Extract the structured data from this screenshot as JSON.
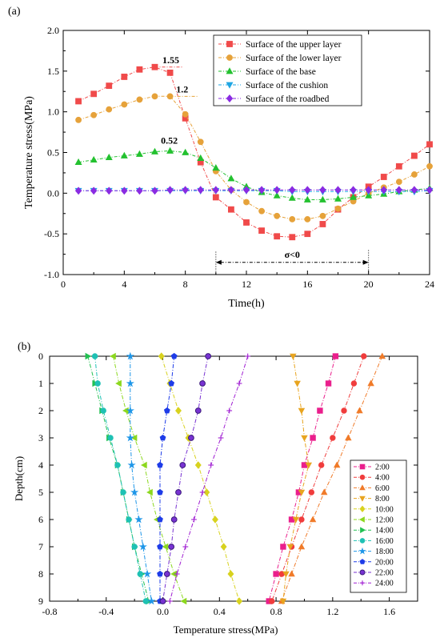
{
  "colors": {
    "axis": "#000000",
    "upper": "#f04a4a",
    "lower": "#e6a23a",
    "base": "#23c12f",
    "cushion": "#1fa6e3",
    "roadbed": "#8a2be2"
  },
  "chart_data": [
    {
      "panel_label": "(a)",
      "type": "line",
      "xlabel": "Time(h)",
      "ylabel": "Temperature stress(MPa)",
      "xlim": [
        0,
        24
      ],
      "ylim": [
        -1.0,
        2.0
      ],
      "xticks": [
        "0",
        "4",
        "8",
        "12",
        "16",
        "20",
        "24"
      ],
      "yticks": [
        "-1.0",
        "-0.5",
        "0.0",
        "0.5",
        "1.0",
        "1.5",
        "2.0"
      ],
      "grid": false,
      "legend_position": "top-right",
      "x": [
        1,
        2,
        3,
        4,
        5,
        6,
        7,
        8,
        9,
        10,
        11,
        12,
        13,
        14,
        15,
        16,
        17,
        18,
        19,
        20,
        21,
        22,
        23,
        24
      ],
      "series": [
        {
          "name": "Surface of the upper layer",
          "color": "#f04a4a",
          "marker": "square",
          "values": [
            1.13,
            1.22,
            1.32,
            1.43,
            1.52,
            1.55,
            1.48,
            0.92,
            0.38,
            -0.05,
            -0.2,
            -0.36,
            -0.46,
            -0.53,
            -0.54,
            -0.5,
            -0.38,
            -0.2,
            -0.05,
            0.08,
            0.2,
            0.33,
            0.46,
            0.6
          ]
        },
        {
          "name": "Surface of the lower layer",
          "color": "#e6a23a",
          "marker": "circle",
          "values": [
            0.9,
            0.96,
            1.03,
            1.09,
            1.15,
            1.19,
            1.19,
            0.97,
            0.63,
            0.27,
            0.04,
            -0.11,
            -0.22,
            -0.28,
            -0.32,
            -0.32,
            -0.28,
            -0.19,
            -0.1,
            0.0,
            0.07,
            0.14,
            0.23,
            0.33
          ]
        },
        {
          "name": "Surface of the base",
          "color": "#23c12f",
          "marker": "triangle-up",
          "values": [
            0.38,
            0.41,
            0.44,
            0.46,
            0.48,
            0.51,
            0.52,
            0.5,
            0.43,
            0.31,
            0.18,
            0.08,
            0.01,
            -0.03,
            -0.06,
            -0.08,
            -0.08,
            -0.07,
            -0.05,
            -0.03,
            -0.01,
            0.02,
            0.04,
            0.06
          ]
        },
        {
          "name": "Surface of the cushion",
          "color": "#1fa6e3",
          "marker": "triangle-down",
          "values": [
            0.03,
            0.03,
            0.03,
            0.03,
            0.03,
            0.03,
            0.03,
            0.03,
            0.03,
            0.03,
            0.03,
            0.03,
            0.03,
            0.03,
            0.02,
            0.02,
            0.02,
            0.02,
            0.02,
            0.02,
            0.02,
            0.02,
            0.02,
            0.03
          ]
        },
        {
          "name": "Surface of the roadbed",
          "color": "#8a2be2",
          "marker": "diamond",
          "values": [
            0.03,
            0.03,
            0.03,
            0.03,
            0.03,
            0.03,
            0.04,
            0.04,
            0.04,
            0.04,
            0.04,
            0.04,
            0.04,
            0.04,
            0.04,
            0.04,
            0.04,
            0.04,
            0.04,
            0.04,
            0.04,
            0.04,
            0.04,
            0.04
          ]
        }
      ],
      "annotations": [
        {
          "text": "1.55",
          "x": 6,
          "y": 1.55,
          "color": "#f04a4a"
        },
        {
          "text": "1.2",
          "x": 7,
          "y": 1.19,
          "color": "#e6a23a"
        },
        {
          "text": "0.52",
          "x": 7,
          "y": 0.52,
          "color": "#23c12f"
        },
        {
          "text": "σ<0",
          "x_from": 10,
          "x_to": 20,
          "y": -0.85
        }
      ]
    },
    {
      "panel_label": "(b)",
      "type": "line",
      "xlabel": "Temperature stress(MPa)",
      "ylabel": "Depth(cm)",
      "xlim": [
        -0.8,
        1.8
      ],
      "ylim": [
        0,
        9
      ],
      "y_inverted": true,
      "xticks": [
        "-0.8",
        "-0.4",
        "0.0",
        "0.4",
        "0.8",
        "1.2",
        "1.6"
      ],
      "yticks": [
        "0",
        "1",
        "2",
        "3",
        "4",
        "5",
        "6",
        "7",
        "8",
        "9"
      ],
      "grid": false,
      "legend_position": "bottom-right",
      "depths": [
        0,
        1,
        2,
        3,
        4,
        5,
        6,
        7,
        8,
        9
      ],
      "series": [
        {
          "name": "2:00",
          "color": "#ea1e8c",
          "marker": "square",
          "values": [
            1.22,
            1.17,
            1.11,
            1.06,
            1.0,
            0.96,
            0.91,
            0.85,
            0.8,
            0.75
          ]
        },
        {
          "name": "4:00",
          "color": "#f03c3c",
          "marker": "circle",
          "values": [
            1.42,
            1.35,
            1.28,
            1.2,
            1.12,
            1.05,
            0.98,
            0.91,
            0.84,
            0.77
          ]
        },
        {
          "name": "6:00",
          "color": "#f07a28",
          "marker": "triangle-up",
          "values": [
            1.55,
            1.47,
            1.39,
            1.31,
            1.23,
            1.14,
            1.06,
            0.98,
            0.91,
            0.84
          ]
        },
        {
          "name": "8:00",
          "color": "#e8a41e",
          "marker": "triangle-down",
          "values": [
            0.92,
            0.95,
            0.98,
            1.0,
            1.03,
            0.98,
            0.94,
            0.9,
            0.87,
            0.85
          ]
        },
        {
          "name": "10:00",
          "color": "#d8d21e",
          "marker": "diamond",
          "values": [
            -0.01,
            0.05,
            0.11,
            0.18,
            0.25,
            0.31,
            0.37,
            0.43,
            0.48,
            0.54
          ]
        },
        {
          "name": "12:00",
          "color": "#8cd81e",
          "marker": "triangle-left",
          "values": [
            -0.35,
            -0.31,
            -0.26,
            -0.2,
            -0.13,
            -0.09,
            -0.04,
            0.02,
            0.08,
            0.15
          ]
        },
        {
          "name": "14:00",
          "color": "#23c152",
          "marker": "triangle-right",
          "values": [
            -0.53,
            -0.48,
            -0.43,
            -0.38,
            -0.32,
            -0.28,
            -0.24,
            -0.2,
            -0.15,
            -0.1
          ]
        },
        {
          "name": "16:00",
          "color": "#1ec1b4",
          "marker": "circle",
          "values": [
            -0.48,
            -0.46,
            -0.42,
            -0.37,
            -0.32,
            -0.28,
            -0.24,
            -0.2,
            -0.16,
            -0.12
          ]
        },
        {
          "name": "18:00",
          "color": "#1e96e8",
          "marker": "star",
          "values": [
            -0.23,
            -0.23,
            -0.23,
            -0.23,
            -0.22,
            -0.2,
            -0.17,
            -0.14,
            -0.11,
            -0.08
          ]
        },
        {
          "name": "20:00",
          "color": "#1e3ce8",
          "marker": "pentagon",
          "values": [
            0.08,
            0.06,
            0.03,
            0.0,
            -0.02,
            -0.02,
            -0.02,
            -0.02,
            -0.02,
            -0.02
          ]
        },
        {
          "name": "22:00",
          "color": "#7832d2",
          "marker": "circle-half",
          "values": [
            0.32,
            0.28,
            0.25,
            0.2,
            0.14,
            0.11,
            0.08,
            0.06,
            0.03,
            0.0
          ]
        },
        {
          "name": "24:00",
          "color": "#a01ed2",
          "marker": "plus",
          "values": [
            0.6,
            0.54,
            0.47,
            0.41,
            0.34,
            0.28,
            0.22,
            0.16,
            0.1,
            0.05
          ]
        }
      ]
    }
  ]
}
